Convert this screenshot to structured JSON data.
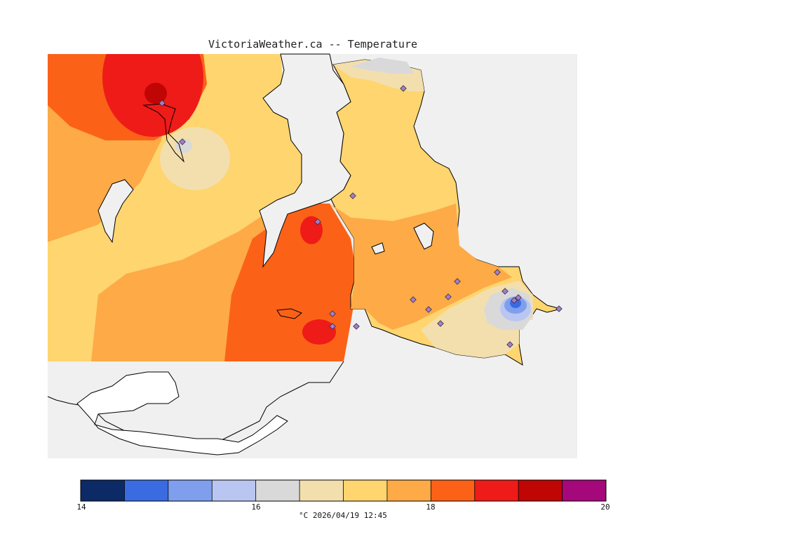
{
  "title": "VictoriaWeather.ca -- Temperature",
  "legend": {
    "caption": "°C  2026/04/19 12:45",
    "unit": "°C",
    "min": 14,
    "max": 20,
    "tick_labels": [
      "14",
      "16",
      "18",
      "20"
    ],
    "colors": [
      "#0c2a66",
      "#3a6be0",
      "#7f9fee",
      "#b9c6f1",
      "#d9d9d9",
      "#f3dfad",
      "#fed56f",
      "#fdaa47",
      "#fb6218",
      "#ee1b18",
      "#c00505",
      "#a5087a"
    ]
  },
  "map": {
    "ocean_color": "#f0f0f0",
    "unmodelled_land_color": "#ffffff",
    "station_marker_color": "#a67bd0"
  }
}
